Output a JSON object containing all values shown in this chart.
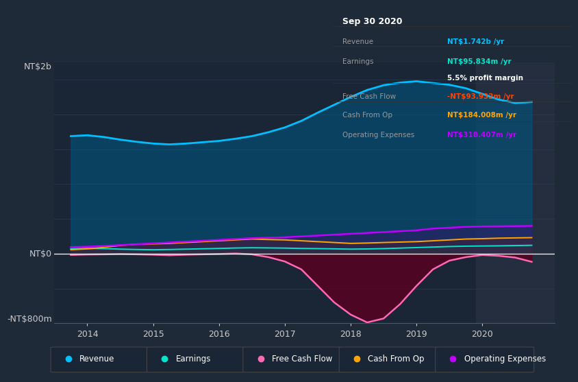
{
  "bg_color": "#1e2a38",
  "plot_bg_color": "#1a2535",
  "title_box_date": "Sep 30 2020",
  "ylabel_top": "NT$2b",
  "ylabel_bottom": "-NT$800m",
  "ylabel_zero": "NT$0",
  "ylim": [
    -800,
    2200
  ],
  "xlim": [
    2013.5,
    2021.1
  ],
  "xtick_labels": [
    "2014",
    "2015",
    "2016",
    "2017",
    "2018",
    "2019",
    "2020"
  ],
  "xtick_positions": [
    2014,
    2015,
    2016,
    2017,
    2018,
    2019,
    2020
  ],
  "legend_items": [
    {
      "label": "Revenue",
      "color": "#00bfff"
    },
    {
      "label": "Earnings",
      "color": "#00e5cc"
    },
    {
      "label": "Free Cash Flow",
      "color": "#ff69b4"
    },
    {
      "label": "Cash From Op",
      "color": "#ffa500"
    },
    {
      "label": "Operating Expenses",
      "color": "#bf00ff"
    }
  ],
  "info_rows": [
    {
      "label": "Revenue",
      "value": "NT$1.742b /yr",
      "value_color": "#00bfff"
    },
    {
      "label": "Earnings",
      "value": "NT$95.834m /yr",
      "value_color": "#00e5cc"
    },
    {
      "label": "",
      "value": "5.5% profit margin",
      "value_color": "#ffffff"
    },
    {
      "label": "Free Cash Flow",
      "value": "-NT$93.932m /yr",
      "value_color": "#ff4500"
    },
    {
      "label": "Cash From Op",
      "value": "NT$184.008m /yr",
      "value_color": "#ffa500"
    },
    {
      "label": "Operating Expenses",
      "value": "NT$318.407m /yr",
      "value_color": "#bf00ff"
    }
  ],
  "series_x": [
    2013.75,
    2014.0,
    2014.25,
    2014.5,
    2014.75,
    2015.0,
    2015.25,
    2015.5,
    2015.75,
    2016.0,
    2016.25,
    2016.5,
    2016.75,
    2017.0,
    2017.25,
    2017.5,
    2017.75,
    2018.0,
    2018.25,
    2018.5,
    2018.75,
    2019.0,
    2019.25,
    2019.5,
    2019.75,
    2020.0,
    2020.25,
    2020.5,
    2020.75
  ],
  "revenue": [
    1350,
    1360,
    1340,
    1310,
    1285,
    1265,
    1255,
    1265,
    1280,
    1295,
    1320,
    1350,
    1395,
    1450,
    1525,
    1620,
    1710,
    1800,
    1880,
    1935,
    1965,
    1980,
    1960,
    1940,
    1900,
    1835,
    1770,
    1730,
    1742
  ],
  "earnings": [
    55,
    60,
    58,
    52,
    48,
    45,
    48,
    52,
    56,
    60,
    65,
    68,
    66,
    64,
    60,
    58,
    55,
    52,
    54,
    58,
    64,
    70,
    76,
    82,
    86,
    88,
    90,
    93,
    95.834
  ],
  "free_cash_flow": [
    -15,
    -10,
    -8,
    -5,
    -8,
    -12,
    -18,
    -12,
    -8,
    -4,
    2,
    -8,
    -40,
    -90,
    -180,
    -370,
    -560,
    -700,
    -790,
    -745,
    -580,
    -370,
    -180,
    -80,
    -40,
    -15,
    -25,
    -45,
    -94
  ],
  "cash_from_op": [
    45,
    55,
    72,
    95,
    108,
    112,
    118,
    128,
    138,
    148,
    158,
    168,
    162,
    158,
    148,
    138,
    128,
    118,
    122,
    128,
    133,
    138,
    148,
    158,
    168,
    172,
    178,
    181,
    184
  ],
  "op_expenses": [
    75,
    80,
    88,
    98,
    108,
    118,
    128,
    138,
    148,
    158,
    168,
    178,
    183,
    188,
    198,
    208,
    218,
    228,
    238,
    248,
    258,
    268,
    288,
    298,
    308,
    313,
    314,
    316,
    318.4
  ]
}
